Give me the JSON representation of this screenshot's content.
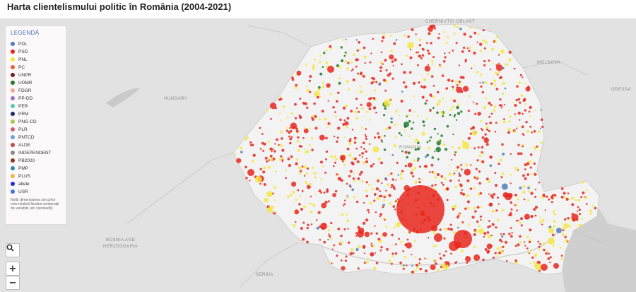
{
  "title": "Harta clientelismului politic în România (2004-2021)",
  "legend": {
    "title": "LEGENDĂ",
    "items": [
      {
        "label": "PDL",
        "color": "#4f7fb8"
      },
      {
        "label": "PSD",
        "color": "#e8261f"
      },
      {
        "label": "PNL",
        "color": "#f5e642"
      },
      {
        "label": "PC",
        "color": "#e3603b"
      },
      {
        "label": "UNPR",
        "color": "#7a1f1f"
      },
      {
        "label": "UDMR",
        "color": "#1f7a2a"
      },
      {
        "label": "FDGR",
        "color": "#f2a88a"
      },
      {
        "label": "PP-DD",
        "color": "#9a72c2"
      },
      {
        "label": "PER",
        "color": "#52c9b8"
      },
      {
        "label": "PRM",
        "color": "#1c2a6b"
      },
      {
        "label": "PNG-CD",
        "color": "#a8c94a"
      },
      {
        "label": "PLR",
        "color": "#d45a7a"
      },
      {
        "label": "PNTCD",
        "color": "#6fa0d6"
      },
      {
        "label": "ALDE",
        "color": "#c24a4a"
      },
      {
        "label": "INDEPENDENT",
        "color": "#8a8a8a"
      },
      {
        "label": "PB2020",
        "color": "#8a3a1a"
      },
      {
        "label": "PMP",
        "color": "#2a8aa0"
      },
      {
        "label": "PLUS",
        "color": "#f0b840"
      },
      {
        "label": "altele",
        "color": "#2a2ad0"
      },
      {
        "label": "USR",
        "color": "#3a7ad8"
      }
    ],
    "note": "Notă: dimensiunea cercurilor este relativă fiecărei combinații de variabile (an / perioadă)"
  },
  "controls": {
    "search_icon": "⚲",
    "zoom_in": "+",
    "zoom_out": "−"
  },
  "labels": {
    "hungary": "HUNGARY",
    "moldova": "MOLDOVA",
    "odessa": "ODESSA",
    "romania": "ROMANIA",
    "bosnia1": "BOSNIA AND",
    "bosnia2": "HERZEGOVINA",
    "serbia": "SERBIA",
    "ukraine": "CHERNIVTSI OBLAST"
  },
  "colors": {
    "psd": "#e8261f",
    "pnl": "#f5e642",
    "udmr": "#1f7a2a",
    "pdl": "#4f7fb8",
    "land": "#d9d9d9",
    "romania": "#f2f2f2",
    "water": "#c8c8c8"
  }
}
